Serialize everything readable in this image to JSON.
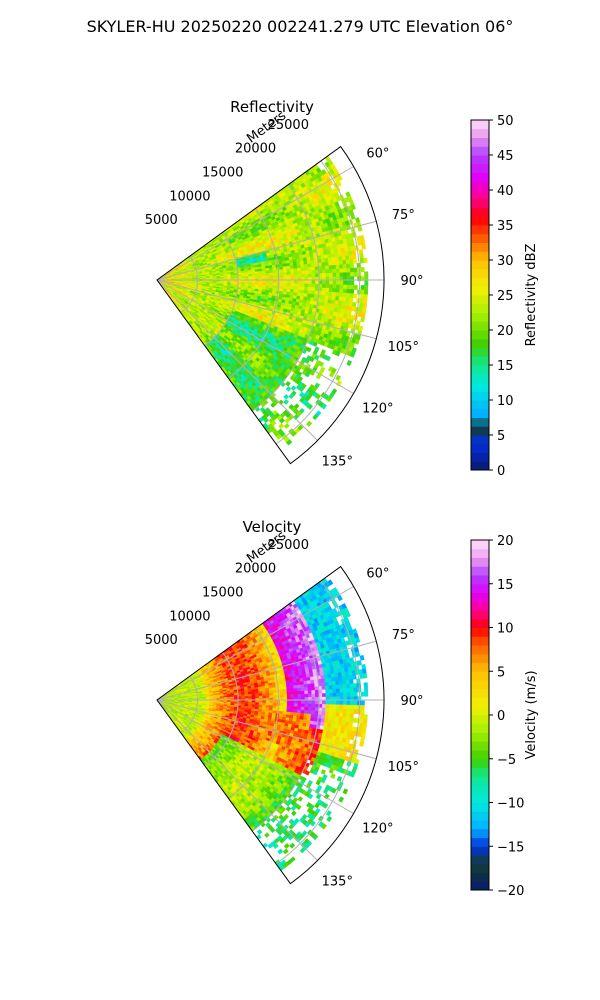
{
  "figure": {
    "suptitle": "SKYLER-HU  20250220  002241.279 UTC Elevation 06°"
  },
  "chart_data": [
    {
      "type": "heatmap",
      "projection": "polar-sector",
      "title": "Reflectivity",
      "radial_label": "Meters",
      "theta_range_deg": [
        54,
        144
      ],
      "r_range": [
        0,
        28000
      ],
      "r_ticks": [
        5000,
        10000,
        15000,
        20000,
        25000
      ],
      "r_tick_labels": [
        "5000",
        "10000",
        "15000",
        "20000",
        "25000"
      ],
      "theta_ticks": [
        60,
        75,
        90,
        105,
        120,
        135
      ],
      "theta_tick_labels": [
        "60°",
        "75°",
        "90°",
        "105°",
        "120°",
        "135°"
      ],
      "grid": true,
      "field_summary": "mostly 20-28 dBZ throughout; higher 25-30 near the radar; green patches near 13-17 dBZ toward the southern edge",
      "colorbar": {
        "label": "Reflectivity dBZ",
        "vmin": 0,
        "vmax": 50,
        "ticks": [
          0,
          5,
          10,
          15,
          20,
          25,
          30,
          35,
          40,
          45,
          50
        ],
        "tick_labels": [
          "0",
          "5",
          "10",
          "15",
          "20",
          "25",
          "30",
          "35",
          "40",
          "45",
          "50"
        ],
        "stops": [
          {
            "v": 0,
            "color": "#0a1a70"
          },
          {
            "v": 4,
            "color": "#0030e0"
          },
          {
            "v": 6,
            "color": "#123e30"
          },
          {
            "v": 8,
            "color": "#00b0ff"
          },
          {
            "v": 12,
            "color": "#00e8e0"
          },
          {
            "v": 15,
            "color": "#10e890"
          },
          {
            "v": 18,
            "color": "#40d000"
          },
          {
            "v": 22,
            "color": "#a0f000"
          },
          {
            "v": 26,
            "color": "#f0f000"
          },
          {
            "v": 30,
            "color": "#ffc000"
          },
          {
            "v": 33,
            "color": "#ff6000"
          },
          {
            "v": 36,
            "color": "#ff0000"
          },
          {
            "v": 39,
            "color": "#ff0090"
          },
          {
            "v": 42,
            "color": "#e000ff"
          },
          {
            "v": 45,
            "color": "#b040ff"
          },
          {
            "v": 48,
            "color": "#f0a0f0"
          },
          {
            "v": 50,
            "color": "#ffe0ff"
          }
        ]
      }
    },
    {
      "type": "heatmap",
      "projection": "polar-sector",
      "title": "Velocity",
      "radial_label": "Meters",
      "theta_range_deg": [
        54,
        144
      ],
      "r_range": [
        0,
        28000
      ],
      "r_ticks": [
        5000,
        10000,
        15000,
        20000,
        25000
      ],
      "r_tick_labels": [
        "5000",
        "10000",
        "15000",
        "20000",
        "25000"
      ],
      "theta_ticks": [
        60,
        75,
        90,
        105,
        120,
        135
      ],
      "theta_tick_labels": [
        "60°",
        "75°",
        "90°",
        "105°",
        "120°",
        "135°"
      ],
      "grid": true,
      "field_summary": "near 0 to -3 m/s close to radar; band of +6 to +10 m/s around 10-15 km; +12 to +18 near 20 km; -10 to -13 beyond 22 km toward 60-90°; -5 to -8 toward the south-east",
      "colorbar": {
        "label": "Velocity (m/s)",
        "vmin": -20,
        "vmax": 20,
        "ticks": [
          -20,
          -15,
          -10,
          -5,
          0,
          5,
          10,
          15,
          20
        ],
        "tick_labels": [
          "−20",
          "−15",
          "−10",
          "−5",
          "0",
          "5",
          "10",
          "15",
          "20"
        ],
        "stops": [
          {
            "v": -20,
            "color": "#0a1a70"
          },
          {
            "v": -17,
            "color": "#123e30"
          },
          {
            "v": -15,
            "color": "#0030e0"
          },
          {
            "v": -13,
            "color": "#00b0ff"
          },
          {
            "v": -10,
            "color": "#00e8e0"
          },
          {
            "v": -7,
            "color": "#10e890"
          },
          {
            "v": -5,
            "color": "#40d000"
          },
          {
            "v": -2,
            "color": "#a0f000"
          },
          {
            "v": 1,
            "color": "#f0f000"
          },
          {
            "v": 5,
            "color": "#ffc000"
          },
          {
            "v": 8,
            "color": "#ff6000"
          },
          {
            "v": 10,
            "color": "#ff0000"
          },
          {
            "v": 12,
            "color": "#ff0090"
          },
          {
            "v": 14,
            "color": "#e000ff"
          },
          {
            "v": 16,
            "color": "#b040ff"
          },
          {
            "v": 18,
            "color": "#f0a0f0"
          },
          {
            "v": 20,
            "color": "#ffe0ff"
          }
        ]
      }
    }
  ]
}
